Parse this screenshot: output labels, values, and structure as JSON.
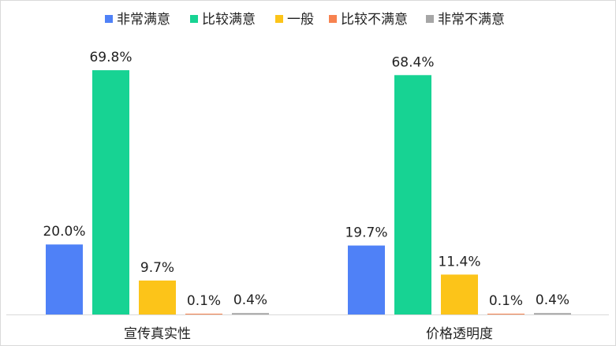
{
  "chart_data": {
    "type": "bar",
    "categories": [
      "宣传真实性",
      "价格透明度"
    ],
    "series": [
      {
        "name": "非常满意",
        "color": "#4F81F7",
        "values": [
          20.0,
          19.7
        ],
        "labels": [
          "20.0%",
          "19.7%"
        ]
      },
      {
        "name": "比较满意",
        "color": "#17D393",
        "values": [
          69.8,
          68.4
        ],
        "labels": [
          "69.8%",
          "68.4%"
        ]
      },
      {
        "name": "一般",
        "color": "#FCC419",
        "values": [
          9.7,
          11.4
        ],
        "labels": [
          "9.7%",
          "11.4%"
        ]
      },
      {
        "name": "比较不满意",
        "color": "#F7824F",
        "values": [
          0.1,
          0.1
        ],
        "labels": [
          "0.1%",
          "0.1%"
        ]
      },
      {
        "name": "非常不满意",
        "color": "#A6A6A6",
        "values": [
          0.4,
          0.4
        ],
        "labels": [
          "0.4%",
          "0.4%"
        ]
      }
    ],
    "ylim": [
      0,
      75
    ],
    "grid": false,
    "legend_position": "top"
  }
}
